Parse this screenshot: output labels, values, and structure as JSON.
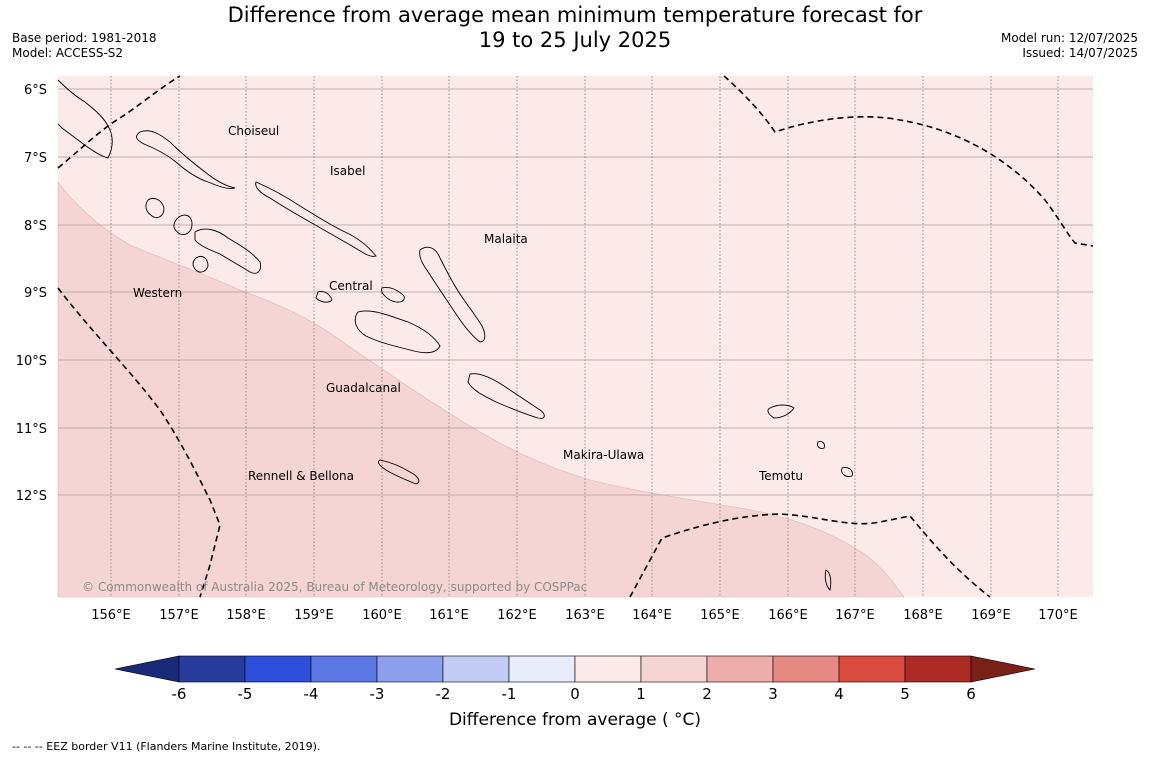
{
  "title": {
    "line1": "Difference from average mean minimum temperature forecast for",
    "line2": "19 to 25 July 2025"
  },
  "meta_left": {
    "base_period": "Base period: 1981-2018",
    "model": "Model: ACCESS-S2"
  },
  "meta_right": {
    "model_run": "Model run: 12/07/2025",
    "issued": "Issued: 14/07/2025"
  },
  "map": {
    "background_color": "#fbeae8",
    "warm_color": "#f5d5d3",
    "lat_labels": [
      "6°S",
      "7°S",
      "8°S",
      "9°S",
      "10°S",
      "11°S",
      "12°S"
    ],
    "lon_labels": [
      "156°E",
      "157°E",
      "158°E",
      "159°E",
      "160°E",
      "161°E",
      "162°E",
      "163°E",
      "164°E",
      "165°E",
      "166°E",
      "167°E",
      "168°E",
      "169°E",
      "170°E"
    ],
    "places": [
      "Choiseul",
      "Isabel",
      "Malaita",
      "Western",
      "Central",
      "Guadalcanal",
      "Makira-Ulawa",
      "Temotu",
      "Rennell & Bellona"
    ],
    "copyright": "© Commonwealth of Australia 2025, Bureau of Meteorology, supported by COSPPac"
  },
  "colorbar": {
    "ticks": [
      "-6",
      "-5",
      "-4",
      "-3",
      "-2",
      "-1",
      "0",
      "1",
      "2",
      "3",
      "4",
      "5",
      "6"
    ],
    "colors": [
      "#283c9e",
      "#2e4fdc",
      "#5b78e4",
      "#8c9fec",
      "#c2cbf4",
      "#e8ecfb",
      "#fbeae8",
      "#f5d5d3",
      "#edaeab",
      "#e48a83",
      "#db4b40",
      "#ad2b24"
    ],
    "under_color": "#1b2a78",
    "over_color": "#7a2017",
    "label": "Difference from average ( °C)"
  },
  "footer": "--  --  -- EEZ border V11 (Flanders Marine Institute, 2019)."
}
